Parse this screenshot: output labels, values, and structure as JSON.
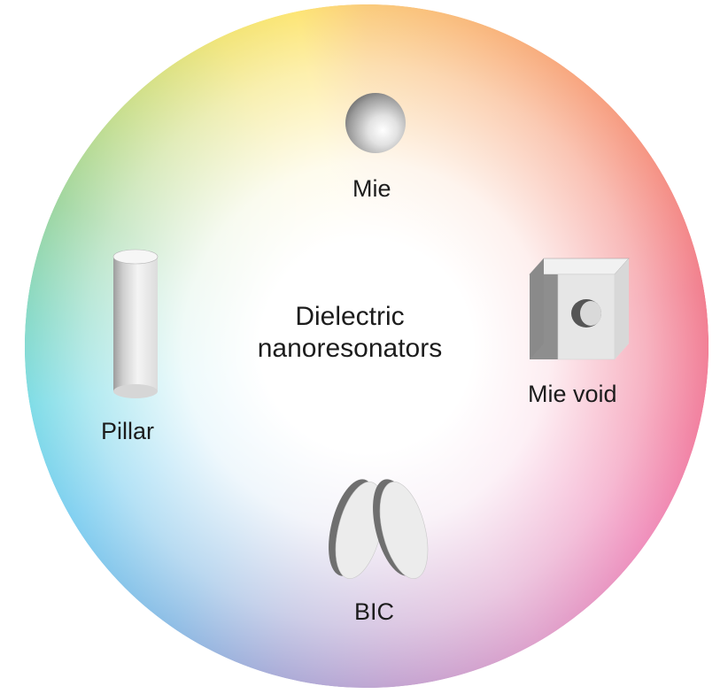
{
  "diagram": {
    "center_label_line1": "Dielectric",
    "center_label_line2": "nanoresonators",
    "nodes": [
      {
        "label": "Mie",
        "icon": "sphere-icon"
      },
      {
        "label": "Mie void",
        "icon": "cube-with-void-icon"
      },
      {
        "label": "BIC",
        "icon": "tilted-disk-pair-icon"
      },
      {
        "label": "Pillar",
        "icon": "cylinder-pillar-icon"
      }
    ],
    "colors": {
      "wheel_spectrum": [
        "#f7a51c",
        "#ef4a2a",
        "#e8233d",
        "#e53f8c",
        "#9a63b0",
        "#3e8fd3",
        "#27aee6",
        "#5cb95c",
        "#e8d219"
      ],
      "center": "#ffffff",
      "text": "#1c1c1c"
    }
  }
}
